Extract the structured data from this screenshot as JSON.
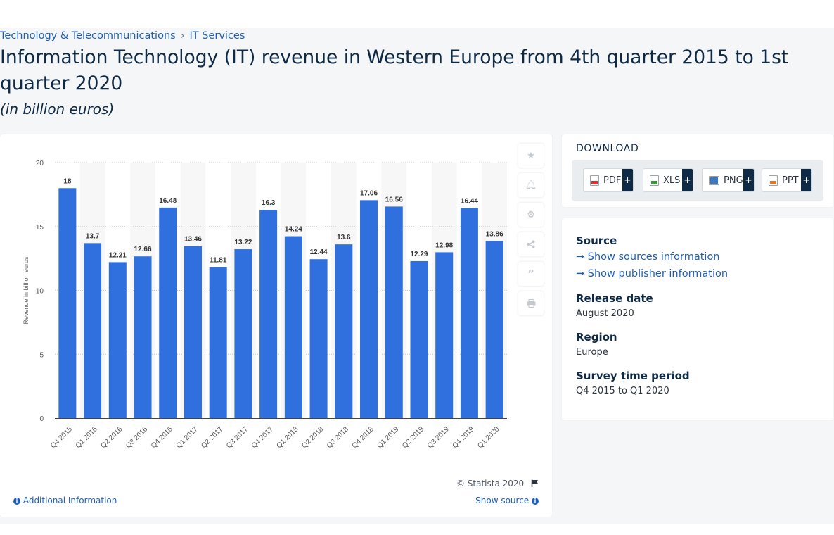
{
  "breadcrumb": [
    "Technology & Telecommunications",
    "IT Services"
  ],
  "breadcrumb_sep": "›",
  "title": "Information Technology (IT) revenue in Western Europe from 4th quarter 2015 to 1st quarter 2020",
  "subtitle": "(in billion euros)",
  "chart_data": {
    "type": "bar",
    "categories": [
      "Q4 2015",
      "Q1 2016",
      "Q2 2016",
      "Q3 2016",
      "Q4 2016",
      "Q1 2017",
      "Q2 2017",
      "Q3 2017",
      "Q4 2017",
      "Q1 2018",
      "Q2 2018",
      "Q3 2018",
      "Q4 2018",
      "Q1 2019",
      "Q2 2019",
      "Q3 2019",
      "Q4 2019",
      "Q1 2020"
    ],
    "values": [
      18,
      13.7,
      12.21,
      12.66,
      16.48,
      13.46,
      11.81,
      13.22,
      16.3,
      14.24,
      12.44,
      13.6,
      17.06,
      16.56,
      12.29,
      12.98,
      16.44,
      13.86
    ],
    "value_labels": [
      "18",
      "13.7",
      "12.21",
      "12.66",
      "16.48",
      "13.46",
      "11.81",
      "13.22",
      "16.3",
      "14.24",
      "12.44",
      "13.6",
      "17.06",
      "16.56",
      "12.29",
      "12.98",
      "16.44",
      "13.86"
    ],
    "ylabel": "Revenue in billion euros",
    "xlabel": "",
    "ylim": [
      0,
      20
    ],
    "yticks": [
      0,
      5,
      10,
      15,
      20
    ],
    "ytick_labels": [
      "0",
      "5",
      "10",
      "15",
      "20"
    ],
    "grid": true,
    "bar_color": "#2f6fde"
  },
  "chart_footer": {
    "copyright": "© Statista 2020",
    "additional": "Additional Information",
    "show_source": "Show source"
  },
  "tools": [
    "star-icon",
    "bell-icon",
    "gear-icon",
    "share-icon",
    "quote-icon",
    "print-icon"
  ],
  "download": {
    "title": "DOWNLOAD",
    "buttons": [
      {
        "label": "PDF",
        "icon": "pdf-file-icon",
        "color": "#d9342b"
      },
      {
        "label": "XLS",
        "icon": "xls-file-icon",
        "color": "#3a9a3a"
      },
      {
        "label": "PNG",
        "icon": "png-file-icon",
        "color": "#3b78c4"
      },
      {
        "label": "PPT",
        "icon": "ppt-file-icon",
        "color": "#e0782b"
      }
    ],
    "plus": "+"
  },
  "info": {
    "source_h": "Source",
    "source_link": "Show sources information",
    "publisher_link": "Show publisher information",
    "release_h": "Release date",
    "release_v": "August 2020",
    "region_h": "Region",
    "region_v": "Europe",
    "period_h": "Survey time period",
    "period_v": "Q4 2015 to Q1 2020"
  }
}
